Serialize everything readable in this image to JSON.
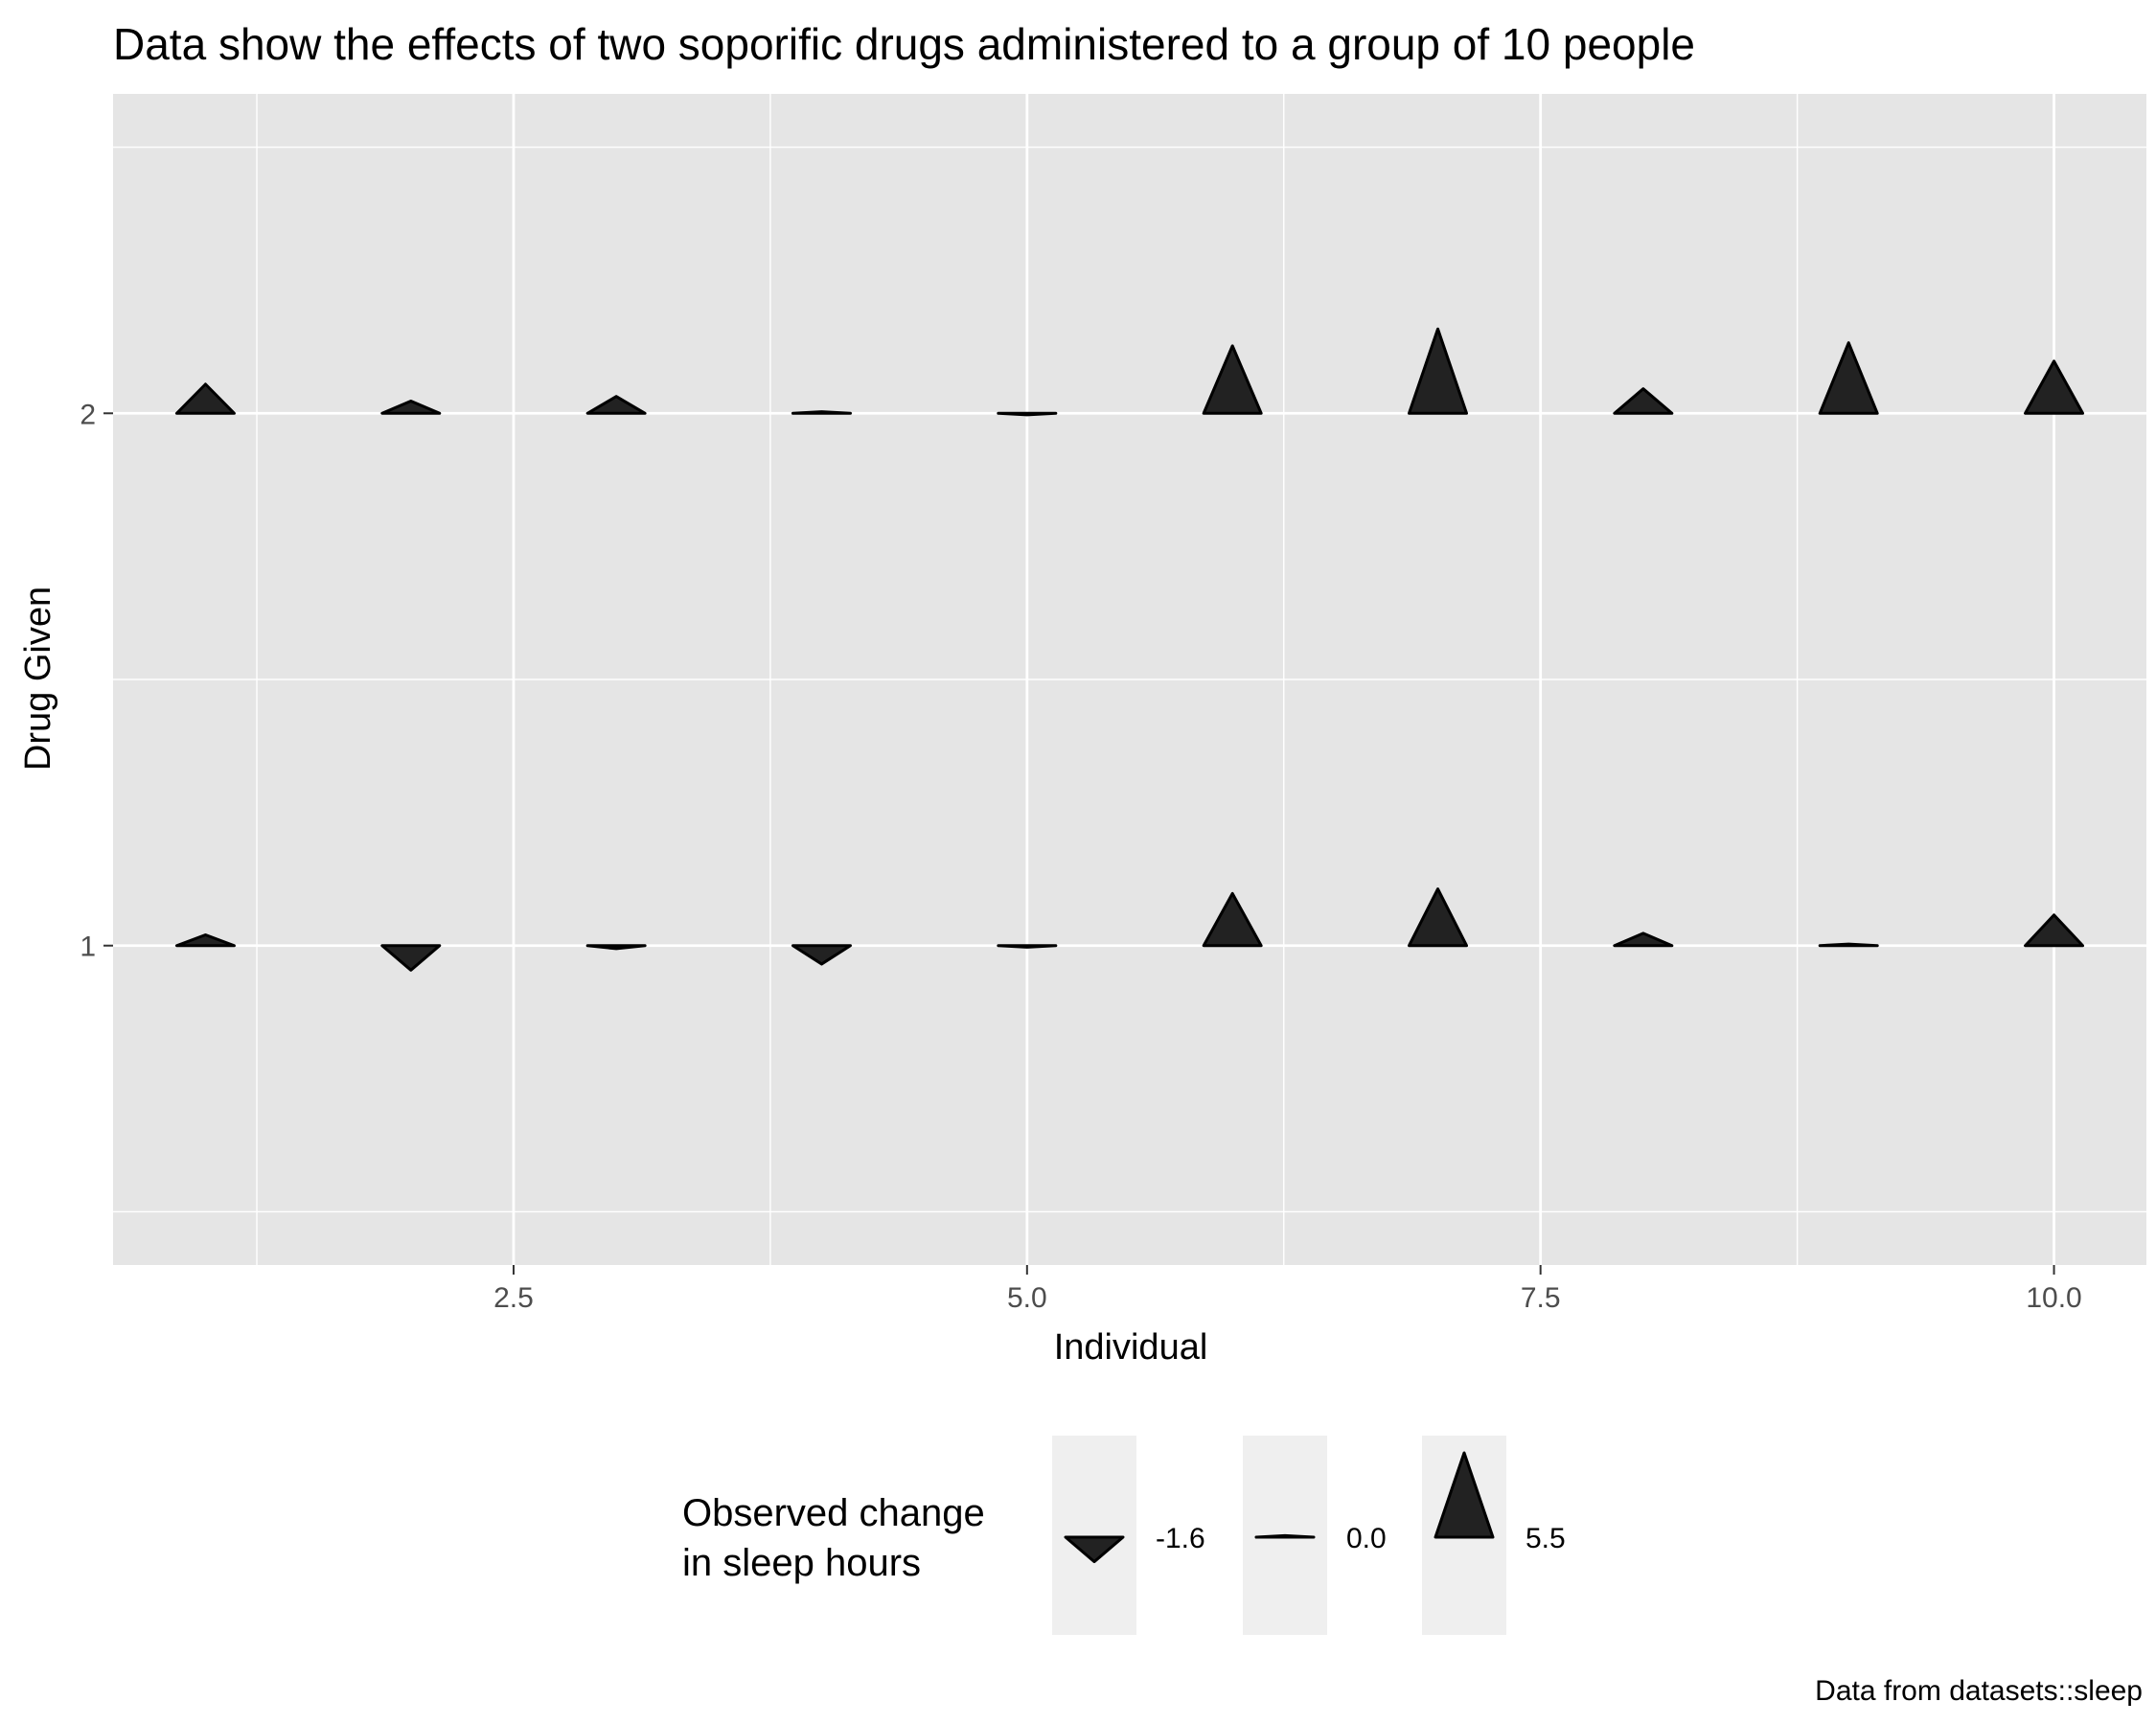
{
  "chart_data": {
    "type": "scatter",
    "title": "Data show the effects of two soporific drugs administered to a group of 10 people",
    "xlabel": "Individual",
    "ylabel": "Drug Given",
    "caption": "Data from datasets::sleep",
    "xlim": [
      0.55,
      10.45
    ],
    "ylim": [
      0.4,
      2.6
    ],
    "x_ticks": [
      2.5,
      5.0,
      7.5,
      10.0
    ],
    "x_tick_labels": [
      "2.5",
      "5.0",
      "7.5",
      "10.0"
    ],
    "y_ticks": [
      1,
      2
    ],
    "y_tick_labels": [
      "1",
      "2"
    ],
    "grid": true,
    "marker": "triangle (up for positive change, down for negative); height proportional to change",
    "size_scale_max": 5.5,
    "points": [
      {
        "individual": 1,
        "drug": 1,
        "extra": 0.7
      },
      {
        "individual": 2,
        "drug": 1,
        "extra": -1.6
      },
      {
        "individual": 3,
        "drug": 1,
        "extra": -0.2
      },
      {
        "individual": 4,
        "drug": 1,
        "extra": -1.2
      },
      {
        "individual": 5,
        "drug": 1,
        "extra": -0.1
      },
      {
        "individual": 6,
        "drug": 1,
        "extra": 3.4
      },
      {
        "individual": 7,
        "drug": 1,
        "extra": 3.7
      },
      {
        "individual": 8,
        "drug": 1,
        "extra": 0.8
      },
      {
        "individual": 9,
        "drug": 1,
        "extra": 0.0
      },
      {
        "individual": 10,
        "drug": 1,
        "extra": 2.0
      },
      {
        "individual": 1,
        "drug": 2,
        "extra": 1.9
      },
      {
        "individual": 2,
        "drug": 2,
        "extra": 0.8
      },
      {
        "individual": 3,
        "drug": 2,
        "extra": 1.1
      },
      {
        "individual": 4,
        "drug": 2,
        "extra": 0.1
      },
      {
        "individual": 5,
        "drug": 2,
        "extra": -0.1
      },
      {
        "individual": 6,
        "drug": 2,
        "extra": 4.4
      },
      {
        "individual": 7,
        "drug": 2,
        "extra": 5.5
      },
      {
        "individual": 8,
        "drug": 2,
        "extra": 1.6
      },
      {
        "individual": 9,
        "drug": 2,
        "extra": 4.6
      },
      {
        "individual": 10,
        "drug": 2,
        "extra": 3.4
      }
    ],
    "legend": {
      "title_lines": [
        "Observed change",
        "in sleep hours"
      ],
      "placement": "bottom",
      "entries": [
        {
          "label": "-1.6",
          "value": -1.6
        },
        {
          "label": "0.0",
          "value": 0.0
        },
        {
          "label": "5.5",
          "value": 5.5
        }
      ]
    },
    "colors": {
      "panel": "#e5e5e5",
      "grid": "#ffffff",
      "marker_fill": "#222222",
      "marker_stroke": "#000000",
      "legend_key_bg": "#efefef"
    }
  }
}
